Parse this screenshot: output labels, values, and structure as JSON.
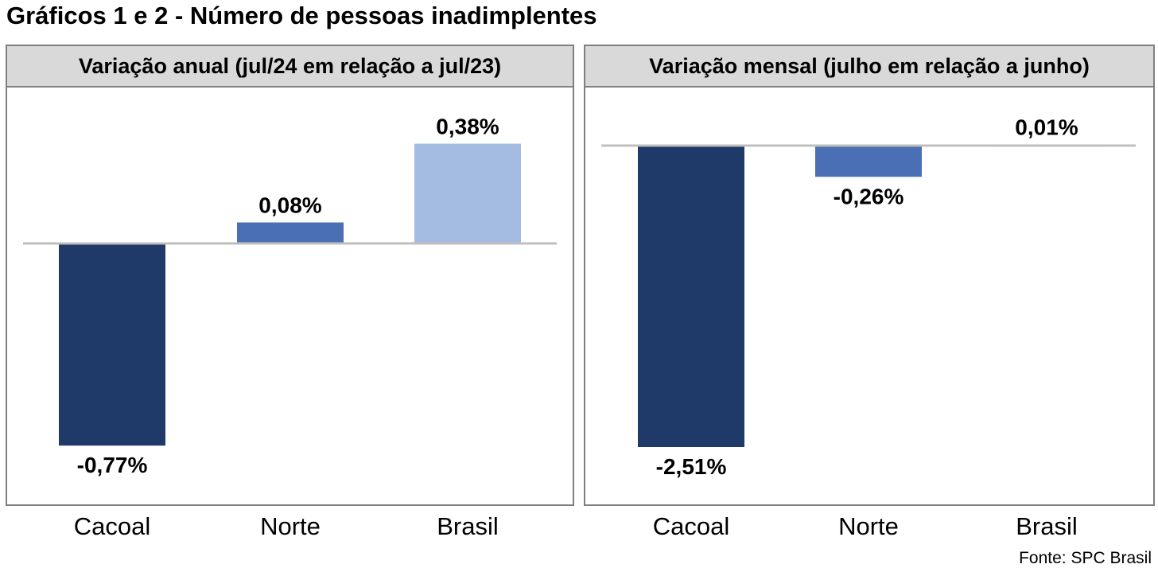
{
  "title": "Gráficos 1 e 2 - Número de pessoas inadimplentes",
  "source": "Fonte: SPC Brasil",
  "colors": {
    "cacoal": "#1f3a68",
    "norte": "#4a6fb5",
    "brasil": "#a4bbe2",
    "header_bg": "#d9d9d9",
    "border": "#7f7f7f",
    "zero_line": "#bfbfbf"
  },
  "chart_data": [
    {
      "type": "bar",
      "title": "Variação anual (jul/24 em relação a jul/23)",
      "categories": [
        "Cacoal",
        "Norte",
        "Brasil"
      ],
      "values": [
        -0.77,
        0.08,
        0.38
      ],
      "labels": [
        "-0,77%",
        "0,08%",
        "0,38%"
      ],
      "unit": "%",
      "grid": false
    },
    {
      "type": "bar",
      "title": "Variação mensal (julho em relação a junho)",
      "categories": [
        "Cacoal",
        "Norte",
        "Brasil"
      ],
      "values": [
        -2.51,
        -0.26,
        0.01
      ],
      "labels": [
        "-2,51%",
        "-0,26%",
        "0,01%"
      ],
      "unit": "%",
      "grid": false
    }
  ]
}
